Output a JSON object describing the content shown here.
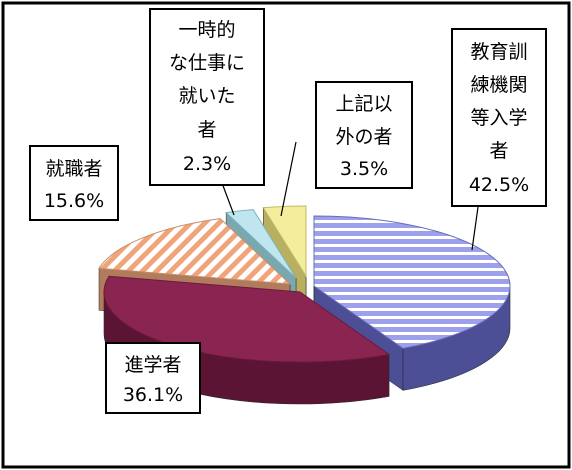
{
  "chart_data": {
    "type": "pie",
    "title": "",
    "slices": [
      {
        "label_lines": [
          "教育訓",
          "練機関",
          "等入学",
          "者"
        ],
        "value": 42.5,
        "value_text": "42.5%",
        "color": "#8f92e0"
      },
      {
        "label_lines": [
          "進学者"
        ],
        "value": 36.1,
        "value_text": "36.1%",
        "color": "#8a2450"
      },
      {
        "label_lines": [
          "就職者"
        ],
        "value": 15.6,
        "value_text": "15.6%",
        "color": "#f3c8a4"
      },
      {
        "label_lines": [
          "一時的",
          "な仕事に",
          "就いた",
          "者"
        ],
        "value": 2.3,
        "value_text": "2.3%",
        "color": "#c8eaf0"
      },
      {
        "label_lines": [
          "上記以",
          "外の者"
        ],
        "value": 3.5,
        "value_text": "3.5%",
        "color": "#f6f0a8"
      }
    ]
  }
}
